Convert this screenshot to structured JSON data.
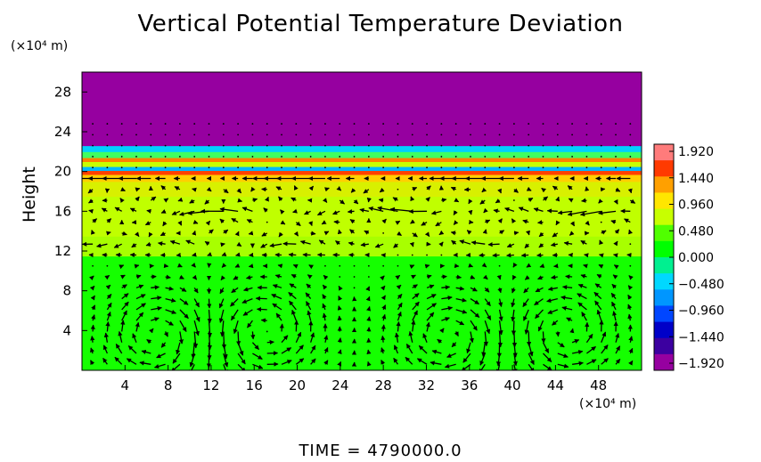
{
  "chart_data": {
    "type": "heatmap",
    "title": "Vertical Potential Temperature Deviation",
    "ylabel": "Height",
    "y_unit": "(×10⁴ m)",
    "x_unit": "(×10⁴ m)",
    "xlim": [
      0,
      52
    ],
    "ylim": [
      0,
      30
    ],
    "x_ticks": [
      "4",
      "8",
      "12",
      "16",
      "20",
      "24",
      "28",
      "32",
      "36",
      "40",
      "44",
      "48"
    ],
    "x_tick_values": [
      4,
      8,
      12,
      16,
      20,
      24,
      28,
      32,
      36,
      40,
      44,
      48
    ],
    "y_ticks": [
      "4",
      "8",
      "12",
      "16",
      "20",
      "24",
      "28"
    ],
    "y_tick_values": [
      4,
      8,
      12,
      16,
      20,
      24,
      28
    ],
    "colorbar": {
      "labels": [
        "1.920",
        "1.440",
        "0.960",
        "0.480",
        "0.000",
        "−0.480",
        "−0.960",
        "−1.440",
        "−1.920"
      ],
      "values": [
        1.92,
        1.44,
        0.96,
        0.48,
        0.0,
        -0.48,
        -0.96,
        -1.44,
        -1.92
      ],
      "colors": [
        "#ff7b7b",
        "#ff3a00",
        "#ffa000",
        "#ffe600",
        "#c8ff00",
        "#50ff00",
        "#00ff00",
        "#00f090",
        "#00d8ff",
        "#0096ff",
        "#0046ff",
        "#0000c8",
        "#3c00a0",
        "#9600a0"
      ]
    },
    "bands": [
      {
        "y0": 0,
        "y1": 11.5,
        "value": -0.1,
        "color": "#15ff00"
      },
      {
        "y0": 11.5,
        "y1": 13.5,
        "value": 0.3,
        "color": "#a8ff00"
      },
      {
        "y0": 13.5,
        "y1": 17.5,
        "value": 0.45,
        "color": "#c0ff00"
      },
      {
        "y0": 17.5,
        "y1": 19,
        "value": 0.6,
        "color": "#d8f000"
      },
      {
        "y0": 19,
        "y1": 19.7,
        "value": 1.0,
        "color": "#ffd000"
      },
      {
        "y0": 19.7,
        "y1": 20.1,
        "value": 1.6,
        "color": "#ff4000"
      },
      {
        "y0": 20.1,
        "y1": 20.5,
        "value": -0.9,
        "color": "#00b8ff"
      },
      {
        "y0": 20.5,
        "y1": 21.0,
        "value": 0.5,
        "color": "#c8ff00"
      },
      {
        "y0": 21.0,
        "y1": 21.4,
        "value": 1.3,
        "color": "#ff8000"
      },
      {
        "y0": 21.4,
        "y1": 22.0,
        "value": 0.1,
        "color": "#40ff60"
      },
      {
        "y0": 22.0,
        "y1": 22.6,
        "value": -0.7,
        "color": "#00d0ff"
      },
      {
        "y0": 22.6,
        "y1": 30,
        "value": -1.92,
        "color": "#9600a0"
      }
    ],
    "vector_field": {
      "description": "velocity arrows",
      "circulation_cells": [
        {
          "x": 7,
          "y": 3.5,
          "rotation": "clockwise"
        },
        {
          "x": 17,
          "y": 4,
          "rotation": "counterclockwise"
        },
        {
          "x": 34,
          "y": 3.5,
          "rotation": "clockwise"
        },
        {
          "x": 45,
          "y": 4,
          "rotation": "counterclockwise"
        }
      ],
      "jets": [
        {
          "y": 12.2,
          "direction": "left"
        },
        {
          "y": 15.8,
          "direction": "left"
        },
        {
          "y": 19.2,
          "direction": "left"
        }
      ]
    }
  },
  "footer": {
    "time_label": "TIME",
    "equals": "=",
    "time_value": "4790000.0"
  }
}
